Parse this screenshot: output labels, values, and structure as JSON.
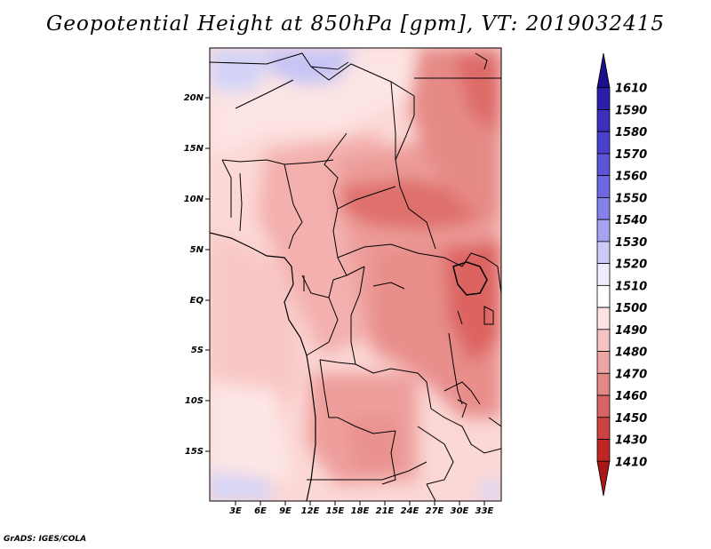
{
  "title": "Geopotential Height at 850hPa [gpm], VT: 2019032415",
  "credit": "GrADS: IGES/COLA",
  "map": {
    "lat_labels": [
      "20N",
      "15N",
      "10N",
      "5N",
      "EQ",
      "5S",
      "10S",
      "15S"
    ],
    "lon_labels": [
      "3E",
      "6E",
      "9E",
      "12E",
      "15E",
      "18E",
      "21E",
      "24E",
      "27E",
      "30E",
      "33E"
    ]
  },
  "colorbar": {
    "levels": [
      "1610",
      "1590",
      "1580",
      "1570",
      "1560",
      "1550",
      "1540",
      "1530",
      "1520",
      "1510",
      "1500",
      "1490",
      "1480",
      "1470",
      "1460",
      "1450",
      "1430",
      "1410"
    ],
    "colors": [
      "#1a0f8c",
      "#2a1fa8",
      "#3a30bb",
      "#4a42cc",
      "#5c55d8",
      "#6e69e2",
      "#8581ea",
      "#a6a3f2",
      "#cccaf8",
      "#ededfd",
      "#ffffff",
      "#fde3e3",
      "#f7c3c3",
      "#eea5a5",
      "#e38787",
      "#d86565",
      "#cd4343",
      "#bf2525",
      "#aa1717"
    ]
  }
}
